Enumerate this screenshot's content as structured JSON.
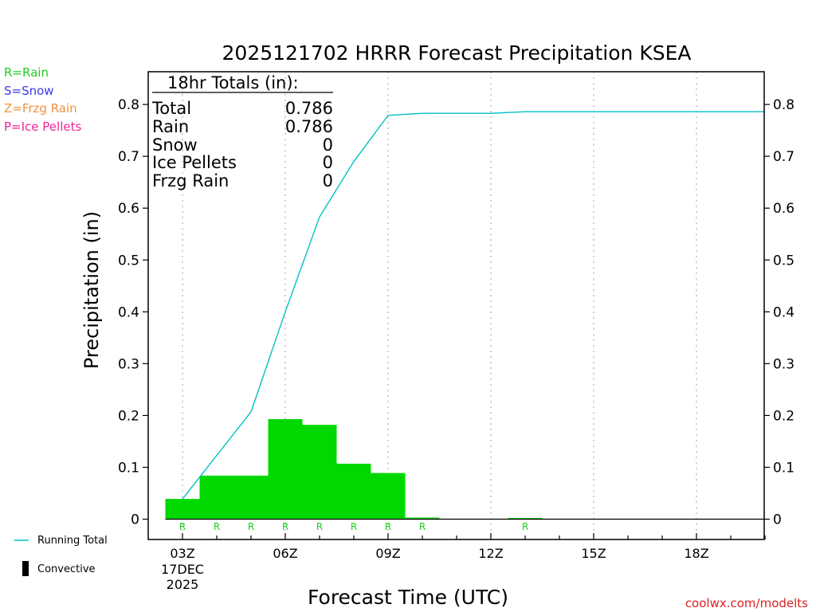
{
  "chart_data": {
    "type": "bar",
    "title": "2025121702 HRRR Forecast Precipitation KSEA",
    "xlabel": "Forecast Time (UTC)",
    "ylabel": "Precipitation (in)",
    "ylim": [
      0,
      0.87
    ],
    "xlim": [
      2.0,
      20.0
    ],
    "y_ticks": [
      "0",
      "0.1",
      "0.2",
      "0.3",
      "0.4",
      "0.5",
      "0.6",
      "0.7",
      "0.8"
    ],
    "x_ticks": [
      {
        "hour": 3,
        "label": "03Z",
        "sub1": "17DEC",
        "sub2": "2025"
      },
      {
        "hour": 6,
        "label": "06Z"
      },
      {
        "hour": 9,
        "label": "09Z"
      },
      {
        "hour": 12,
        "label": "12Z"
      },
      {
        "hour": 15,
        "label": "15Z"
      },
      {
        "hour": 18,
        "label": "18Z"
      }
    ],
    "grid": "vertical-dotted",
    "bar_series": {
      "color": "#00d800",
      "bars": [
        {
          "hour": 3,
          "value": 0.039,
          "type_label": "R"
        },
        {
          "hour": 4,
          "value": 0.084,
          "type_label": "R"
        },
        {
          "hour": 5,
          "value": 0.084,
          "type_label": "R"
        },
        {
          "hour": 6,
          "value": 0.193,
          "type_label": "R"
        },
        {
          "hour": 7,
          "value": 0.182,
          "type_label": "R"
        },
        {
          "hour": 8,
          "value": 0.107,
          "type_label": "R"
        },
        {
          "hour": 9,
          "value": 0.089,
          "type_label": "R"
        },
        {
          "hour": 10,
          "value": 0.003,
          "type_label": "R"
        },
        {
          "hour": 11,
          "value": 0.0,
          "type_label": ""
        },
        {
          "hour": 12,
          "value": 0.0,
          "type_label": ""
        },
        {
          "hour": 13,
          "value": 0.002,
          "type_label": "R"
        },
        {
          "hour": 14,
          "value": 0.0,
          "type_label": ""
        },
        {
          "hour": 15,
          "value": 0.0,
          "type_label": ""
        },
        {
          "hour": 16,
          "value": 0.0,
          "type_label": ""
        },
        {
          "hour": 17,
          "value": 0.0,
          "type_label": ""
        },
        {
          "hour": 18,
          "value": 0.0,
          "type_label": ""
        },
        {
          "hour": 19,
          "value": 0.0,
          "type_label": ""
        }
      ]
    },
    "running_total": {
      "name": "Running Total",
      "color": "#00c0c8",
      "x": [
        3,
        5,
        6,
        7,
        8,
        9,
        10,
        11,
        12,
        13,
        14,
        15,
        16,
        17,
        18,
        19,
        20
      ],
      "y": [
        0.039,
        0.207,
        0.4,
        0.583,
        0.69,
        0.779,
        0.783,
        0.783,
        0.783,
        0.786,
        0.786,
        0.786,
        0.786,
        0.786,
        0.786,
        0.786,
        0.786
      ]
    },
    "convective_series": {
      "name": "Convective",
      "color": "#000000"
    },
    "totals_box": {
      "heading": "18hr Totals (in):",
      "rows": [
        {
          "label": "Total",
          "value": "0.786"
        },
        {
          "label": "Rain",
          "value": "0.786"
        },
        {
          "label": "Snow",
          "value": "0"
        },
        {
          "label": "Ice Pellets",
          "value": "0"
        },
        {
          "label": "Frzg Rain",
          "value": "0"
        }
      ]
    },
    "type_legend": [
      {
        "text": "R=Rain",
        "color": "#22cc22"
      },
      {
        "text": "S=Snow",
        "color": "#3a3aee"
      },
      {
        "text": "Z=Frzg Rain",
        "color": "#f09040"
      },
      {
        "text": "P=Ice Pellets",
        "color": "#ee2299"
      }
    ],
    "credit": "coolwx.com/modelts",
    "credit_color": "#dd2222"
  }
}
